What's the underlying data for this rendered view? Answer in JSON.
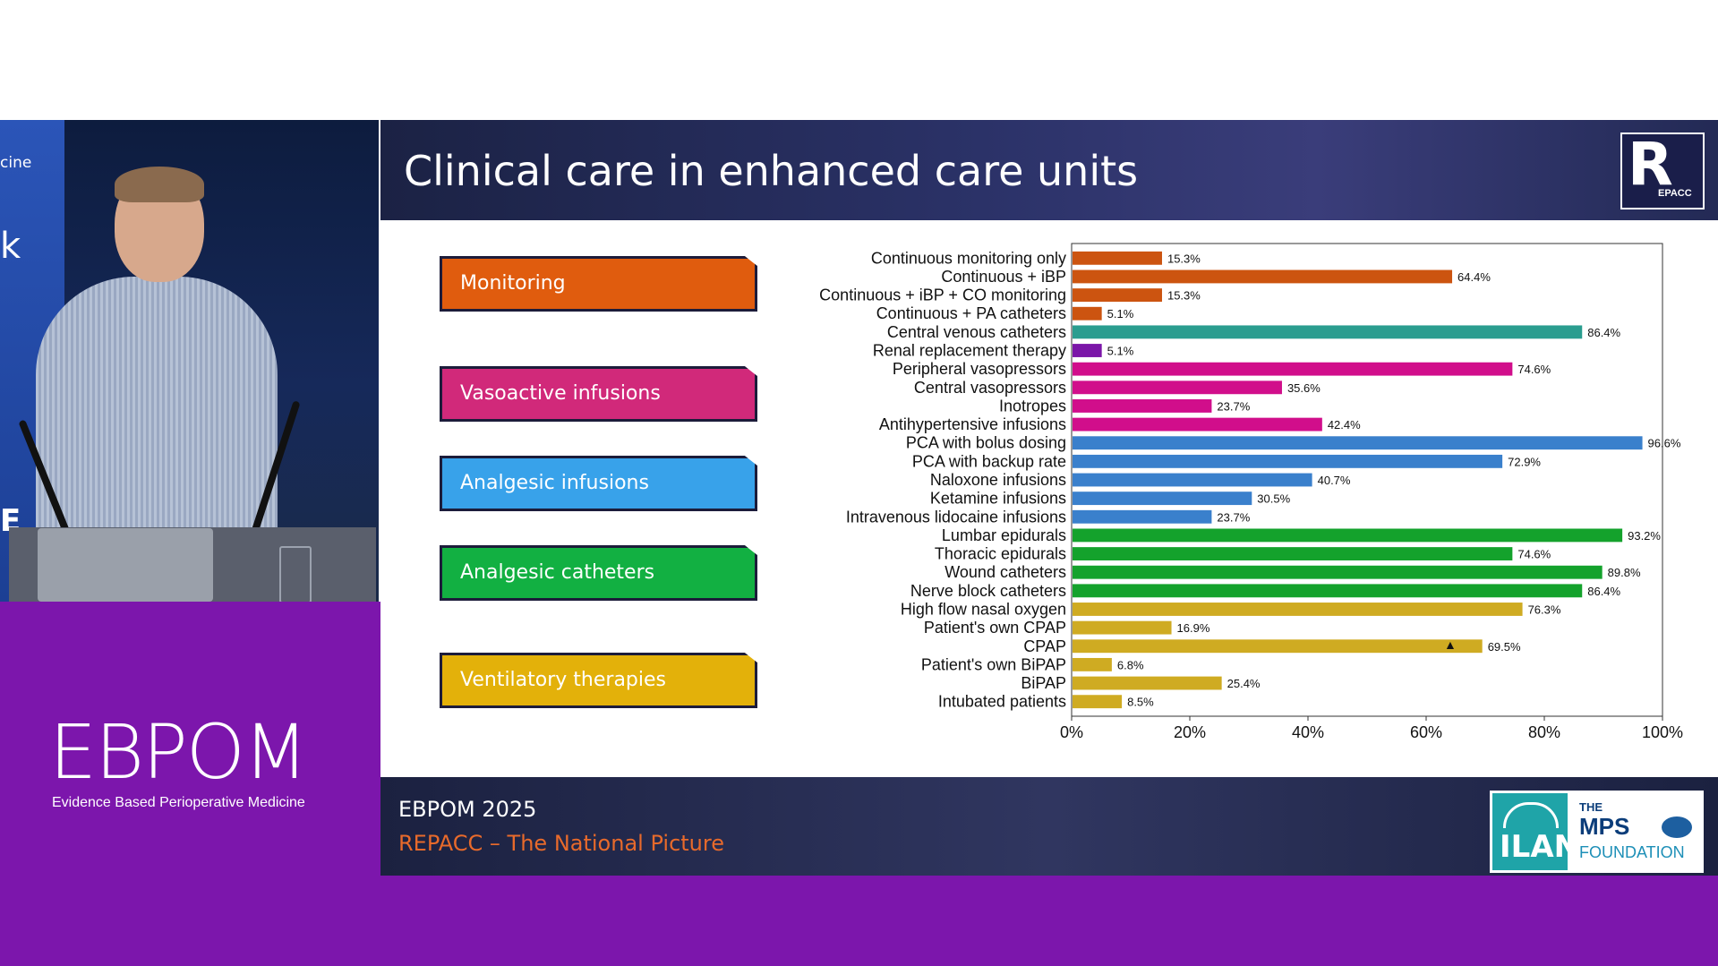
{
  "slide": {
    "title": "Clinical care in enhanced care units",
    "footer_event": "EBPOM 2025",
    "footer_subtitle": "REPACC – The National Picture",
    "logo_repacc_letter": "R",
    "logo_repacc_text": "EPACC"
  },
  "speaker_panel": {
    "banner_fragments": [
      "cine",
      "k",
      "E"
    ]
  },
  "branding": {
    "ebpom_logo": "EBPOM",
    "ebpom_tagline": "Evidence Based Perioperative Medicine",
    "sponsor_ilan": "ILAN",
    "sponsor_mps_the": "THE",
    "sponsor_mps_name": "MPS",
    "sponsor_mps_foundation": "FOUNDATION"
  },
  "categories": [
    {
      "label": "Monitoring",
      "color": "#e05c0e"
    },
    {
      "label": "Vasoactive infusions",
      "color": "#d1297a"
    },
    {
      "label": "Analgesic infusions",
      "color": "#38a2ea"
    },
    {
      "label": "Analgesic catheters",
      "color": "#12b042"
    },
    {
      "label": "Ventilatory therapies",
      "color": "#e3b10a"
    }
  ],
  "colors": {
    "monitoring": "#cc5410",
    "central_venous": "#2a9d8f",
    "renal": "#7b16a8",
    "vasoactive": "#d10e8b",
    "analgesic_infusions": "#3a80cc",
    "analgesic_catheters": "#14a22c",
    "ventilatory": "#cfab22",
    "purple_band": "#7c16ac"
  },
  "chart_data": {
    "type": "bar",
    "orientation": "horizontal",
    "xlim": [
      0,
      100
    ],
    "x_ticks": [
      "0%",
      "20%",
      "40%",
      "60%",
      "80%",
      "100%"
    ],
    "grid": false,
    "categories": [
      "Continuous monitoring only",
      "Continuous + iBP",
      "Continuous + iBP + CO monitoring",
      "Continuous + PA catheters",
      "Central venous catheters",
      "Renal replacement therapy",
      "Peripheral vasopressors",
      "Central vasopressors",
      "Inotropes",
      "Antihypertensive infusions",
      "PCA with bolus dosing",
      "PCA with backup rate",
      "Naloxone infusions",
      "Ketamine infusions",
      "Intravenous lidocaine infusions",
      "Lumbar epidurals",
      "Thoracic epidurals",
      "Wound catheters",
      "Nerve block catheters",
      "High flow nasal oxygen",
      "Patient's own CPAP",
      "CPAP",
      "Patient's own BiPAP",
      "BiPAP",
      "Intubated patients"
    ],
    "values": [
      15.3,
      64.4,
      15.3,
      5.1,
      86.4,
      5.1,
      74.6,
      35.6,
      23.7,
      42.4,
      96.6,
      72.9,
      40.7,
      30.5,
      23.7,
      93.2,
      74.6,
      89.8,
      86.4,
      76.3,
      16.9,
      69.5,
      6.8,
      25.4,
      8.5
    ],
    "value_labels": [
      "15.3%",
      "64.4%",
      "15.3%",
      "5.1%",
      "86.4%",
      "5.1%",
      "74.6%",
      "35.6%",
      "23.7%",
      "42.4%",
      "96.6%",
      "72.9%",
      "40.7%",
      "30.5%",
      "23.7%",
      "93.2%",
      "74.6%",
      "89.8%",
      "86.4%",
      "76.3%",
      "16.9%",
      "69.5%",
      "6.8%",
      "25.4%",
      "8.5%"
    ],
    "bar_groups": [
      "monitoring",
      "monitoring",
      "monitoring",
      "monitoring",
      "central_venous",
      "renal",
      "vasoactive",
      "vasoactive",
      "vasoactive",
      "vasoactive",
      "analgesic_infusions",
      "analgesic_infusions",
      "analgesic_infusions",
      "analgesic_infusions",
      "analgesic_infusions",
      "analgesic_catheters",
      "analgesic_catheters",
      "analgesic_catheters",
      "analgesic_catheters",
      "ventilatory",
      "ventilatory",
      "ventilatory",
      "ventilatory",
      "ventilatory",
      "ventilatory"
    ]
  }
}
